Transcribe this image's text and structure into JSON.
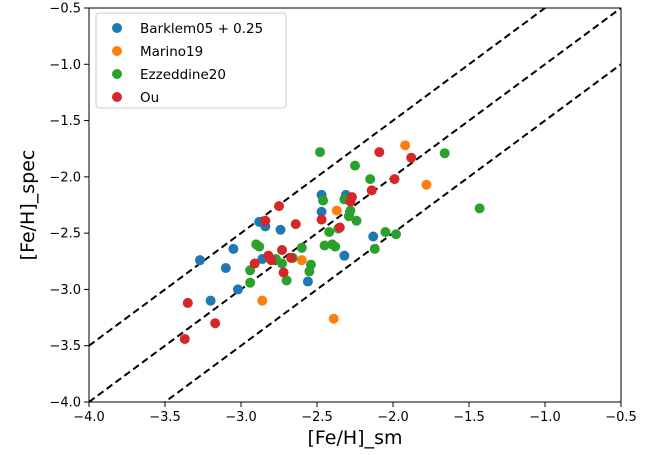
{
  "chart_data": {
    "type": "scatter",
    "title": "",
    "xlabel": "[Fe/H]_sm",
    "ylabel": "[Fe/H]_spec",
    "xlim": [
      -4.0,
      -0.5
    ],
    "ylim": [
      -4.0,
      -0.5
    ],
    "xticks": [
      -4.0,
      -3.5,
      -3.0,
      -2.5,
      -2.0,
      -1.5,
      -1.0,
      -0.5
    ],
    "yticks": [
      -4.0,
      -3.5,
      -3.0,
      -2.5,
      -2.0,
      -1.5,
      -1.0,
      -0.5
    ],
    "xtick_labels": [
      "−4.0",
      "−3.5",
      "−3.0",
      "−2.5",
      "−2.0",
      "−1.5",
      "−1.0",
      "−0.5"
    ],
    "ytick_labels": [
      "−4.0",
      "−3.5",
      "−3.0",
      "−2.5",
      "−2.0",
      "−1.5",
      "−1.0",
      "−0.5"
    ],
    "grid": false,
    "legend_position": "top-left",
    "reference_lines": [
      {
        "style": "dashed",
        "color": "#000000",
        "intercept": 0.5
      },
      {
        "style": "dashed",
        "color": "#000000",
        "intercept": 0.0
      },
      {
        "style": "dashed",
        "color": "#000000",
        "intercept": -0.5
      }
    ],
    "series": [
      {
        "name": "Barklem05 + 0.25",
        "color": "#1f77b4",
        "points": [
          [
            -3.27,
            -2.74
          ],
          [
            -3.2,
            -3.1
          ],
          [
            -3.1,
            -2.81
          ],
          [
            -3.05,
            -2.64
          ],
          [
            -3.02,
            -3.0
          ],
          [
            -2.88,
            -2.4
          ],
          [
            -2.86,
            -2.73
          ],
          [
            -2.84,
            -2.44
          ],
          [
            -2.74,
            -2.47
          ],
          [
            -2.56,
            -2.93
          ],
          [
            -2.47,
            -2.16
          ],
          [
            -2.47,
            -2.31
          ],
          [
            -2.32,
            -2.7
          ],
          [
            -2.31,
            -2.16
          ],
          [
            -2.13,
            -2.53
          ]
        ]
      },
      {
        "name": "Marino19",
        "color": "#ff7f0e",
        "points": [
          [
            -2.86,
            -3.1
          ],
          [
            -2.6,
            -2.74
          ],
          [
            -2.39,
            -3.26
          ],
          [
            -2.37,
            -2.3
          ],
          [
            -1.92,
            -1.72
          ],
          [
            -1.78,
            -2.07
          ]
        ]
      },
      {
        "name": "Ezzeddine20",
        "color": "#2ca02c",
        "points": [
          [
            -2.94,
            -2.94
          ],
          [
            -2.94,
            -2.83
          ],
          [
            -2.9,
            -2.6
          ],
          [
            -2.88,
            -2.62
          ],
          [
            -2.77,
            -2.73
          ],
          [
            -2.73,
            -2.77
          ],
          [
            -2.7,
            -2.92
          ],
          [
            -2.66,
            -2.72
          ],
          [
            -2.6,
            -2.63
          ],
          [
            -2.55,
            -2.84
          ],
          [
            -2.54,
            -2.78
          ],
          [
            -2.48,
            -1.78
          ],
          [
            -2.46,
            -2.21
          ],
          [
            -2.45,
            -2.61
          ],
          [
            -2.42,
            -2.49
          ],
          [
            -2.4,
            -2.6
          ],
          [
            -2.38,
            -2.62
          ],
          [
            -2.36,
            -2.46
          ],
          [
            -2.32,
            -2.2
          ],
          [
            -2.29,
            -2.35
          ],
          [
            -2.28,
            -2.3
          ],
          [
            -2.25,
            -1.9
          ],
          [
            -2.24,
            -2.39
          ],
          [
            -2.15,
            -2.02
          ],
          [
            -2.12,
            -2.64
          ],
          [
            -2.05,
            -2.49
          ],
          [
            -1.98,
            -2.51
          ],
          [
            -1.66,
            -1.79
          ],
          [
            -1.43,
            -2.28
          ]
        ]
      },
      {
        "name": "Ou",
        "color": "#d62728",
        "points": [
          [
            -3.37,
            -3.44
          ],
          [
            -3.35,
            -3.12
          ],
          [
            -3.17,
            -3.3
          ],
          [
            -2.91,
            -2.77
          ],
          [
            -2.84,
            -2.39
          ],
          [
            -2.82,
            -2.7
          ],
          [
            -2.8,
            -2.74
          ],
          [
            -2.75,
            -2.26
          ],
          [
            -2.73,
            -2.65
          ],
          [
            -2.72,
            -2.85
          ],
          [
            -2.67,
            -2.72
          ],
          [
            -2.64,
            -2.42
          ],
          [
            -2.47,
            -2.38
          ],
          [
            -2.35,
            -2.45
          ],
          [
            -2.28,
            -2.22
          ],
          [
            -2.27,
            -2.18
          ],
          [
            -2.14,
            -2.12
          ],
          [
            -2.09,
            -1.78
          ],
          [
            -1.99,
            -2.02
          ],
          [
            -1.88,
            -1.83
          ]
        ]
      }
    ]
  }
}
